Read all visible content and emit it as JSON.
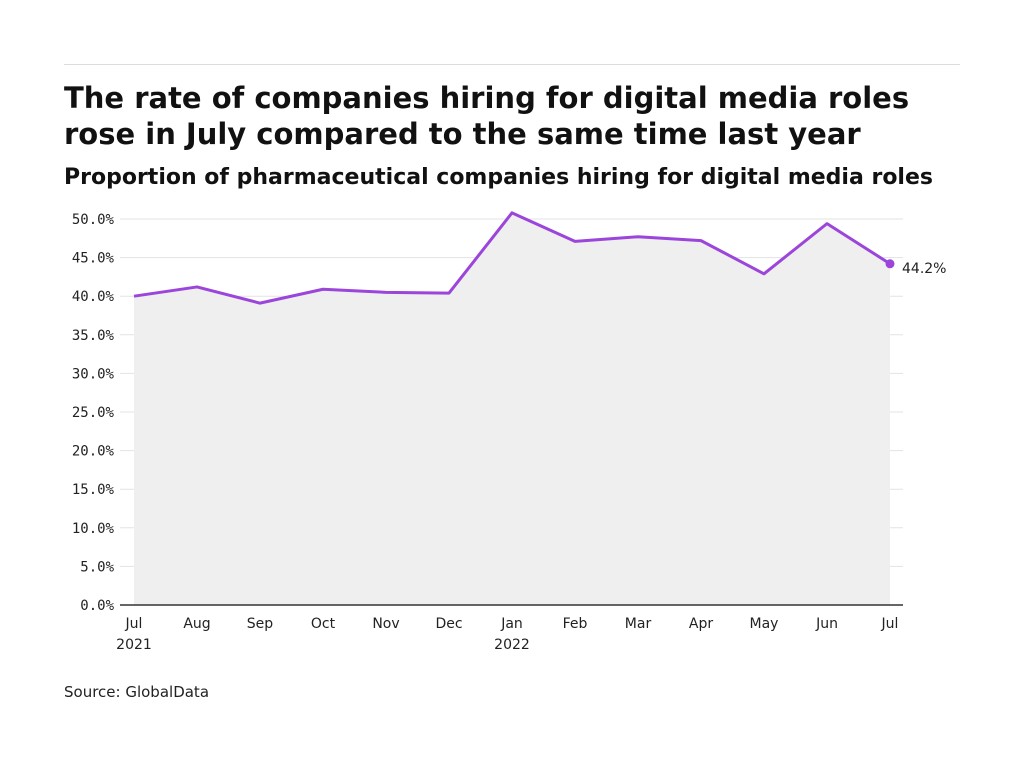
{
  "header": {
    "title": "The rate of companies hiring for digital media roles rose in July compared to the same time last year",
    "subtitle": "Proportion of pharmaceutical companies hiring for digital media roles"
  },
  "footer": {
    "source": "Source: GlobalData"
  },
  "colors": {
    "line": "#9b45db",
    "area": "#efefef",
    "grid": "#e3e3e3",
    "axis": "#333333"
  },
  "chart_data": {
    "type": "area",
    "title": "The rate of companies hiring for digital media roles rose in July compared to the same time last year",
    "subtitle": "Proportion of pharmaceutical companies hiring for digital media roles",
    "xlabel": "",
    "ylabel": "",
    "categories": [
      "Jul",
      "Aug",
      "Sep",
      "Oct",
      "Nov",
      "Dec",
      "Jan",
      "Feb",
      "Mar",
      "Apr",
      "May",
      "Jun",
      "Jul"
    ],
    "category_year_labels": [
      "2021",
      "",
      "",
      "",
      "",
      "",
      "2022",
      "",
      "",
      "",
      "",
      "",
      ""
    ],
    "series": [
      {
        "values": [
          40.0,
          41.2,
          39.1,
          40.9,
          40.5,
          40.4,
          50.8,
          47.1,
          47.7,
          47.2,
          42.9,
          49.4,
          44.2
        ]
      }
    ],
    "ylim": [
      0,
      50
    ],
    "yticks": [
      "0.0%",
      "5.0%",
      "10.0%",
      "15.0%",
      "20.0%",
      "25.0%",
      "30.0%",
      "35.0%",
      "40.0%",
      "45.0%",
      "50.0%"
    ],
    "ytick_values": [
      0,
      5,
      10,
      15,
      20,
      25,
      30,
      35,
      40,
      45,
      50
    ],
    "end_label": "44.2%",
    "grid": true,
    "legend": "none"
  }
}
